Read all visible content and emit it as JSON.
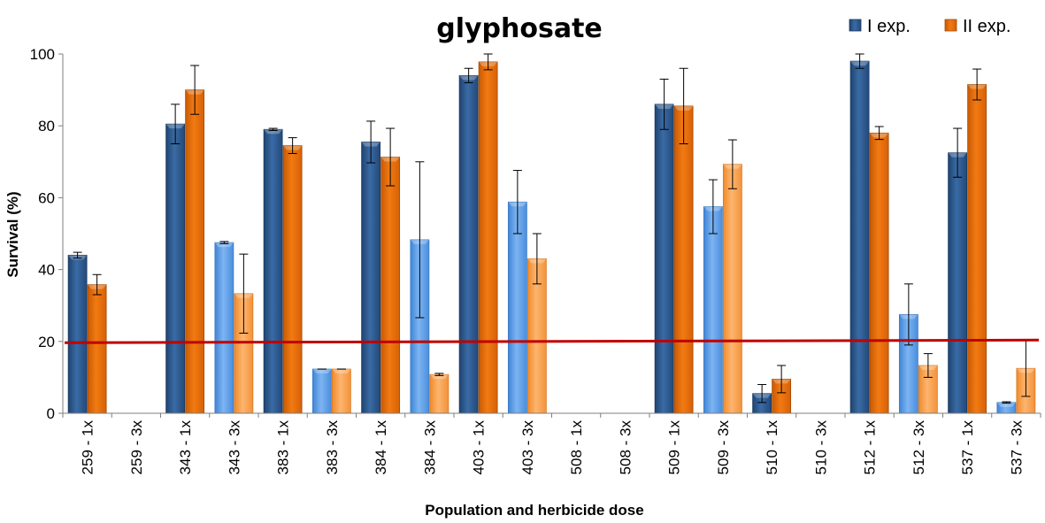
{
  "chart_data": {
    "type": "bar",
    "title": "glyphosate",
    "xlabel": "Population and herbicide dose",
    "ylabel": "Survival (%)",
    "ylim": [
      0,
      100
    ],
    "yticks": [
      0,
      20,
      40,
      60,
      80,
      100
    ],
    "grid": false,
    "legend_position": "top-right",
    "categories": [
      "259 - 1x",
      "259 - 3x",
      "343 - 1x",
      "343 - 3x",
      "383 - 1x",
      "383 - 3x",
      "384 - 1x",
      "384 - 3x",
      "403 - 1x",
      "403 - 3x",
      "508 - 1x",
      "508 - 3x",
      "509 - 1x",
      "509 - 3x",
      "510 - 1x",
      "510 - 3x",
      "512 - 1x",
      "512 - 3x",
      "537 - 1x",
      "537 - 3x"
    ],
    "series": [
      {
        "name": "I exp.",
        "values": [
          44,
          0,
          80.5,
          47.5,
          79,
          12.3,
          75.5,
          48.3,
          94,
          58.8,
          0,
          0,
          86,
          57.5,
          5.5,
          0,
          98,
          27.5,
          72.5,
          3
        ],
        "errors": [
          0.8,
          0,
          5.5,
          0.3,
          0.3,
          0,
          5.8,
          21.7,
          2,
          8.8,
          0,
          0,
          7,
          7.5,
          2.5,
          0,
          2,
          8.5,
          6.8,
          0.2
        ]
      },
      {
        "name": "II exp.",
        "values": [
          35.8,
          0,
          90,
          33.3,
          74.5,
          12.3,
          71.3,
          10.8,
          97.8,
          43,
          0,
          0,
          85.5,
          69.3,
          9.5,
          0,
          78,
          13.3,
          91.5,
          12.5
        ],
        "errors": [
          2.8,
          0,
          6.8,
          11,
          2.2,
          0,
          8,
          0.3,
          2.2,
          7,
          0,
          0,
          10.5,
          6.8,
          3.8,
          0,
          1.8,
          3.3,
          4.3,
          7.8
        ]
      }
    ],
    "reference_line": {
      "value": 20,
      "color": "#C00000"
    },
    "colors": {
      "exp1_dose1x": "#2E5C91",
      "exp1_dose3x": "#5B9BE6",
      "exp2_dose1x": "#E66C09",
      "exp2_dose3x": "#F9A04C"
    }
  }
}
